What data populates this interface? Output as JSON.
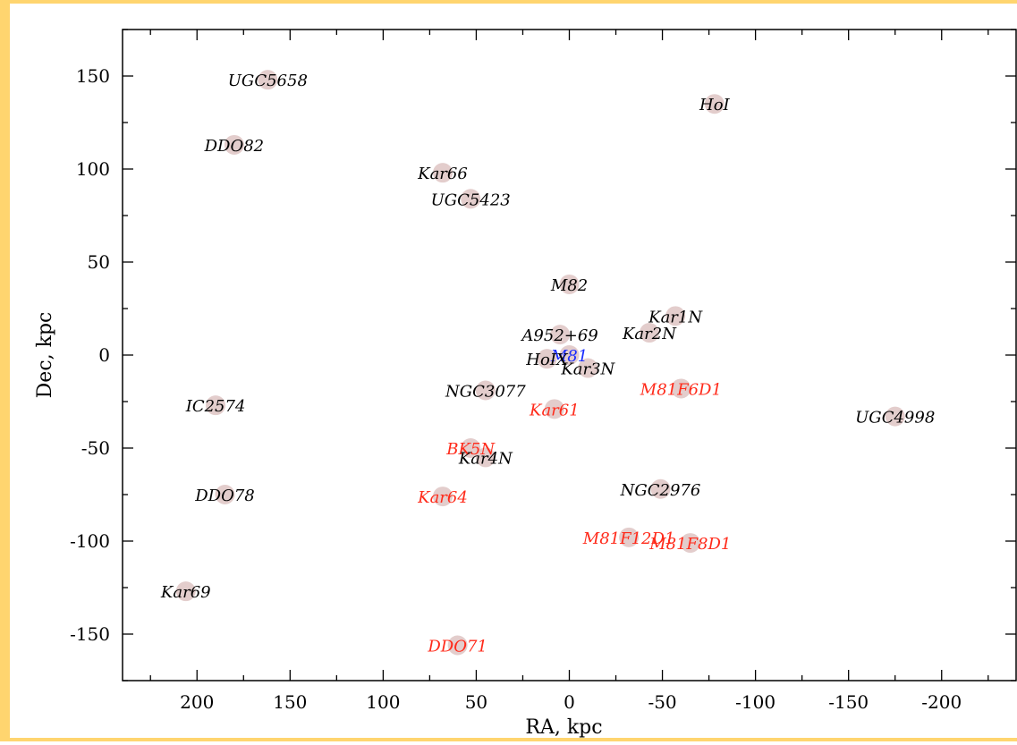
{
  "chart_data": {
    "type": "scatter",
    "xlabel": "RA, kpc",
    "ylabel": "Dec, kpc",
    "xlim": [
      240,
      -240
    ],
    "ylim": [
      -175,
      175
    ],
    "x_reversed": true,
    "xticks": [
      200,
      150,
      100,
      50,
      0,
      -50,
      -100,
      -150,
      -200
    ],
    "xtick_labels": [
      "200",
      "150",
      "100",
      "50",
      "0",
      "-50",
      "-100",
      "-150",
      "-200"
    ],
    "yticks": [
      150,
      100,
      50,
      0,
      -50,
      -100,
      -150
    ],
    "ytick_labels": [
      "150",
      "100",
      "50",
      "0",
      "-50",
      "-100",
      "-150"
    ],
    "grid": false,
    "marker_color": "#e0c8c6",
    "label_colors": {
      "black": "#000000",
      "red": "#ff2a1a",
      "blue": "#1a2cff"
    },
    "points": [
      {
        "name": "UGC5658",
        "x": 162,
        "y": 148,
        "color": "black"
      },
      {
        "name": "HoI",
        "x": -78,
        "y": 135,
        "color": "black"
      },
      {
        "name": "DDO82",
        "x": 180,
        "y": 113,
        "color": "black"
      },
      {
        "name": "Kar66",
        "x": 68,
        "y": 98,
        "color": "black"
      },
      {
        "name": "UGC5423",
        "x": 53,
        "y": 84,
        "color": "black"
      },
      {
        "name": "M82",
        "x": 0,
        "y": 38,
        "color": "black"
      },
      {
        "name": "Kar1N",
        "x": -57,
        "y": 21,
        "color": "black"
      },
      {
        "name": "Kar2N",
        "x": -43,
        "y": 12,
        "color": "black"
      },
      {
        "name": "A952+69",
        "x": 5,
        "y": 11,
        "color": "black"
      },
      {
        "name": "M81",
        "x": 0,
        "y": 0,
        "color": "blue"
      },
      {
        "name": "HoIX",
        "x": 12,
        "y": -2,
        "color": "black"
      },
      {
        "name": "Kar3N",
        "x": -10,
        "y": -7,
        "color": "black"
      },
      {
        "name": "NGC3077",
        "x": 45,
        "y": -19,
        "color": "black"
      },
      {
        "name": "M81F6D1",
        "x": -60,
        "y": -18,
        "color": "red"
      },
      {
        "name": "IC2574",
        "x": 190,
        "y": -27,
        "color": "black"
      },
      {
        "name": "Kar61",
        "x": 8,
        "y": -29,
        "color": "red"
      },
      {
        "name": "UGC4998",
        "x": -175,
        "y": -33,
        "color": "black"
      },
      {
        "name": "BK5N",
        "x": 53,
        "y": -50,
        "color": "red"
      },
      {
        "name": "Kar4N",
        "x": 45,
        "y": -55,
        "color": "black"
      },
      {
        "name": "NGC2976",
        "x": -49,
        "y": -72,
        "color": "black"
      },
      {
        "name": "DDO78",
        "x": 185,
        "y": -75,
        "color": "black"
      },
      {
        "name": "Kar64",
        "x": 68,
        "y": -76,
        "color": "red"
      },
      {
        "name": "M81F12D1",
        "x": -32,
        "y": -98,
        "color": "red"
      },
      {
        "name": "M81F8D1",
        "x": -65,
        "y": -101,
        "color": "red"
      },
      {
        "name": "Kar69",
        "x": 206,
        "y": -127,
        "color": "black"
      },
      {
        "name": "DDO71",
        "x": 60,
        "y": -156,
        "color": "red"
      }
    ]
  }
}
